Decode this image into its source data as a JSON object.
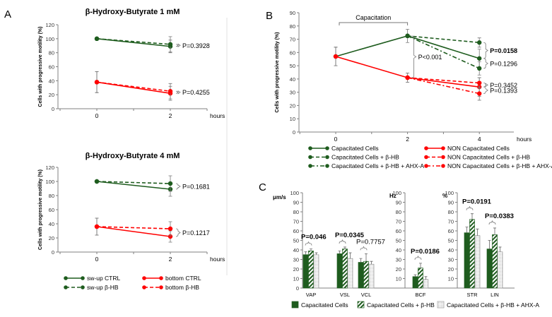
{
  "panel_labels": {
    "a": "A",
    "b": "B",
    "c": "C"
  },
  "chart_data": [
    {
      "type": "line",
      "panel": "A",
      "title": "β-Hydroxy-Butyrate 1 mM",
      "xlabel": "hours",
      "ylabel": "Cells with progressive motility (%)",
      "xticks": [
        0,
        2
      ],
      "ylim": [
        0,
        120
      ],
      "ystep": 20,
      "series": [
        {
          "name": "sw-up CTRL",
          "color": "#1e5c1e",
          "style": "solid",
          "x": [
            0,
            2
          ],
          "y": [
            100,
            89
          ],
          "err": [
            1,
            9
          ]
        },
        {
          "name": "sw-up β-HB",
          "color": "#1e5c1e",
          "style": "dashed",
          "x": [
            0,
            2
          ],
          "y": [
            100,
            92
          ],
          "err": [
            1,
            11
          ]
        },
        {
          "name": "bottom CTRL",
          "color": "#ff0000",
          "style": "solid",
          "x": [
            0,
            2
          ],
          "y": [
            38,
            22
          ],
          "err": [
            15,
            10
          ]
        },
        {
          "name": "bottom β-HB",
          "color": "#ff0000",
          "style": "dashed",
          "x": [
            0,
            2
          ],
          "y": [
            38,
            25
          ],
          "err": [
            15,
            11
          ]
        }
      ],
      "annotations": [
        {
          "text": "P=0.3928",
          "x": 2,
          "y_range": [
            89,
            92
          ],
          "bold": false
        },
        {
          "text": "P=0.4255",
          "x": 2,
          "y_range": [
            22,
            25
          ],
          "bold": false
        }
      ]
    },
    {
      "type": "line",
      "panel": "A",
      "title": "β-Hydroxy-Butyrate 4 mM",
      "xlabel": "hours",
      "ylabel": "Cells with progressive motility (%)",
      "xticks": [
        0,
        2
      ],
      "ylim": [
        0,
        120
      ],
      "ystep": 20,
      "series": [
        {
          "name": "sw-up CTRL",
          "color": "#1e5c1e",
          "style": "solid",
          "x": [
            0,
            2
          ],
          "y": [
            100,
            89
          ],
          "err": [
            1,
            10
          ]
        },
        {
          "name": "sw-up β-HB",
          "color": "#1e5c1e",
          "style": "dashed",
          "x": [
            0,
            2
          ],
          "y": [
            100,
            97
          ],
          "err": [
            1,
            11
          ]
        },
        {
          "name": "bottom CTRL",
          "color": "#ff0000",
          "style": "solid",
          "x": [
            0,
            2
          ],
          "y": [
            36,
            22
          ],
          "err": [
            12,
            8
          ]
        },
        {
          "name": "bottom β-HB",
          "color": "#ff0000",
          "style": "dashed",
          "x": [
            0,
            2
          ],
          "y": [
            36,
            33
          ],
          "err": [
            12,
            10
          ]
        }
      ],
      "annotations": [
        {
          "text": "P=0.1681",
          "x": 2,
          "y_range": [
            89,
            97
          ],
          "bold": false
        },
        {
          "text": "P=0.1217",
          "x": 2,
          "y_range": [
            22,
            33
          ],
          "bold": false
        }
      ],
      "legend": {
        "placement": "bottom",
        "items": [
          "sw-up CTRL",
          "bottom CTRL",
          "sw-up β-HB",
          "bottom β-HB"
        ]
      }
    },
    {
      "type": "line",
      "panel": "B",
      "title": "",
      "xlabel": "hours",
      "ylabel": "Cells with progressive motility (%)",
      "xticks": [
        0,
        2,
        4
      ],
      "ylim": [
        0,
        90
      ],
      "ystep": 10,
      "bracket": {
        "text": "Capacitation",
        "x_range": [
          0,
          2
        ]
      },
      "series": [
        {
          "name": "Capacitated Cells",
          "color": "#1e5c1e",
          "style": "solid",
          "x": [
            0,
            2,
            4
          ],
          "y": [
            57,
            72.5,
            55.5
          ],
          "err": [
            7,
            5,
            7
          ]
        },
        {
          "name": "Capacitated Cells + β-HB",
          "color": "#1e5c1e",
          "style": "dashed",
          "x": [
            2,
            4
          ],
          "y": [
            72.5,
            67.5
          ],
          "err": [
            0,
            3.5
          ]
        },
        {
          "name": "Capacitated Cells + β-HB + AHX-A",
          "color": "#1e5c1e",
          "style": "dashdot",
          "x": [
            2,
            4
          ],
          "y": [
            72.5,
            48
          ],
          "err": [
            0,
            5
          ]
        },
        {
          "name": "NON Capacitated Cells",
          "color": "#ff0000",
          "style": "solid",
          "x": [
            0,
            2,
            4
          ],
          "y": [
            57,
            41,
            34
          ],
          "err": [
            7,
            3.5,
            7
          ]
        },
        {
          "name": "NON Capacitated Cells + β-HB",
          "color": "#ff0000",
          "style": "dashed",
          "x": [
            2,
            4
          ],
          "y": [
            41,
            37
          ],
          "err": [
            0,
            4
          ]
        },
        {
          "name": "NON Capacitated Cells + β-HB + AHX-A",
          "color": "#ff0000",
          "style": "dashdot",
          "x": [
            2,
            4
          ],
          "y": [
            41,
            29
          ],
          "err": [
            0,
            5
          ]
        }
      ],
      "annotations": [
        {
          "text": "P<0.001",
          "x": 2,
          "y_range": [
            41,
            72.5
          ],
          "bold": false
        },
        {
          "text": "P=0.0158",
          "x": 4,
          "y_range": [
            55.5,
            67.5
          ],
          "bold": true
        },
        {
          "text": "P=0.1296",
          "x": 4,
          "y_range": [
            48,
            55.5
          ],
          "bold": false
        },
        {
          "text": "P=0.3452",
          "x": 4,
          "y_range": [
            34,
            37
          ],
          "bold": false
        },
        {
          "text": "P=0.1393",
          "x": 4,
          "y_range": [
            29,
            34
          ],
          "bold": false
        }
      ],
      "legend": {
        "placement": "bottom",
        "items": [
          "Capacitated Cells",
          "NON Capacitated Cells",
          "Capacitated Cells + β-HB",
          "NON Capacitated Cells + β-HB",
          "Capacitated Cells + β-HB + AHX-A",
          "NON Capacitated Cells + β-HB + AHX-A"
        ]
      }
    },
    {
      "type": "bar",
      "panel": "C",
      "ylim": [
        0,
        100
      ],
      "ystep": 10,
      "groups": [
        {
          "unit": "μm/s",
          "categories": [
            "VAP",
            "VSL",
            "VCL"
          ]
        },
        {
          "unit": "Hz",
          "categories": [
            "BCF"
          ]
        },
        {
          "unit": "%",
          "categories": [
            "STR",
            "LIN"
          ]
        }
      ],
      "categories": [
        "VAP",
        "VSL",
        "VCL",
        "BCF",
        "STR",
        "LIN"
      ],
      "series": [
        {
          "name": "Capacitated Cells",
          "color": "#1e5c1e",
          "fill": "solid",
          "values": [
            35,
            36,
            27,
            12,
            58,
            41
          ],
          "err": [
            3,
            3,
            4,
            2,
            6,
            9
          ]
        },
        {
          "name": "Capacitated Cells + β-HB",
          "color": "#1e5c1e",
          "fill": "hatched",
          "values": [
            39,
            41,
            28,
            21,
            72,
            56
          ],
          "err": [
            2,
            2,
            8,
            5,
            6,
            7
          ]
        },
        {
          "name": "Capacitated Cells + β-HB + AHX-A",
          "color": "#9a9a9a",
          "fill": "dotted",
          "values": [
            35,
            31,
            25,
            9,
            55,
            38
          ],
          "err": [
            2,
            6,
            3,
            3,
            7,
            5
          ]
        }
      ],
      "annotations": [
        {
          "category": "VAP",
          "text": "P=0.046",
          "bold": true
        },
        {
          "category": "VSL",
          "text": "P=0.0345",
          "bold": true
        },
        {
          "category": "VCL",
          "text": "P=0.7757",
          "bold": false
        },
        {
          "category": "BCF",
          "text": "P=0.0186",
          "bold": true
        },
        {
          "category": "STR",
          "text": "P=0.0191",
          "bold": true
        },
        {
          "category": "LIN",
          "text": "P=0.0383",
          "bold": true
        }
      ],
      "legend": {
        "placement": "bottom",
        "items": [
          "Capacitated Cells",
          "Capacitated Cells + β-HB",
          "Capacitated Cells + β-HB + AHX-A"
        ]
      }
    }
  ]
}
